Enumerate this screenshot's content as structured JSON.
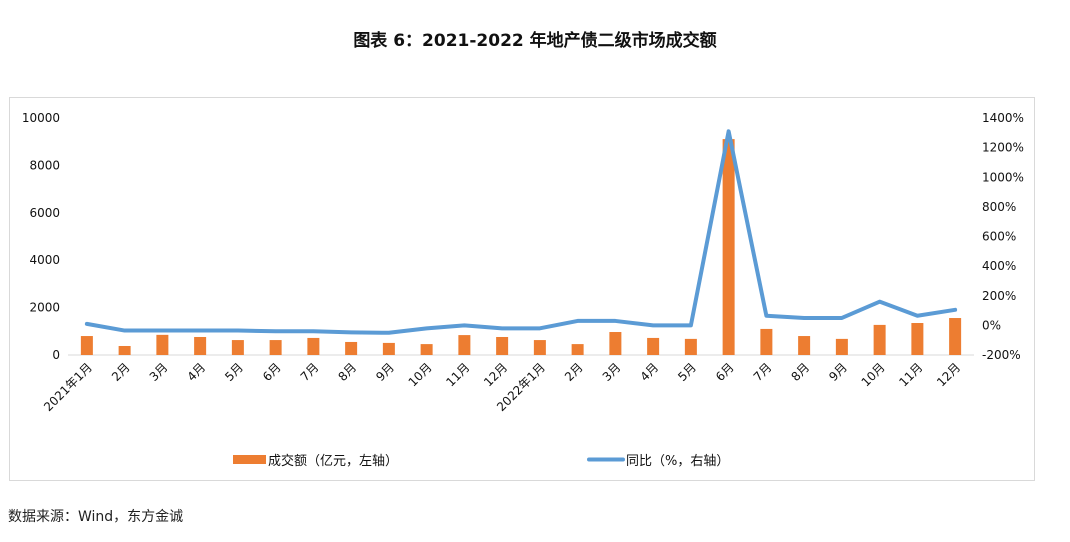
{
  "title": "图表 6：2021-2022 年地产债二级市场成交额",
  "source": "数据来源：Wind，东方金诚",
  "chart_data": {
    "type": "bar+line",
    "title": "图表 6：2021-2022 年地产债二级市场成交额",
    "categories": [
      "2021年1月",
      "2月",
      "3月",
      "4月",
      "5月",
      "6月",
      "7月",
      "8月",
      "9月",
      "10月",
      "11月",
      "12月",
      "2022年1月",
      "2月",
      "3月",
      "4月",
      "5月",
      "6月",
      "7月",
      "8月",
      "9月",
      "10月",
      "11月",
      "12月"
    ],
    "series": [
      {
        "name": "成交额（亿元，左轴）",
        "type": "bar",
        "axis": "left",
        "color": "#ED7D31",
        "values": [
          800,
          380,
          850,
          760,
          630,
          630,
          720,
          550,
          510,
          460,
          840,
          760,
          630,
          460,
          970,
          720,
          680,
          9110,
          1100,
          800,
          680,
          1270,
          1350,
          1560
        ]
      },
      {
        "name": "同比（%，右轴）",
        "type": "line",
        "axis": "right",
        "color": "#5B9BD5",
        "values": [
          10,
          -35,
          -35,
          -35,
          -35,
          -40,
          -40,
          -47,
          -50,
          -20,
          0,
          -20,
          -20,
          30,
          30,
          0,
          0,
          1310,
          65,
          50,
          50,
          160,
          65,
          105
        ]
      }
    ],
    "left_axis": {
      "min": 0,
      "max": 10000,
      "ticks": [
        "0",
        "2000",
        "4000",
        "6000",
        "8000",
        "10000"
      ]
    },
    "right_axis": {
      "min": -200,
      "max": 1400,
      "ticks": [
        "-200%",
        "0%",
        "200%",
        "400%",
        "600%",
        "800%",
        "1000%",
        "1200%",
        "1400%"
      ]
    },
    "legend_position": "bottom",
    "grid": false
  }
}
